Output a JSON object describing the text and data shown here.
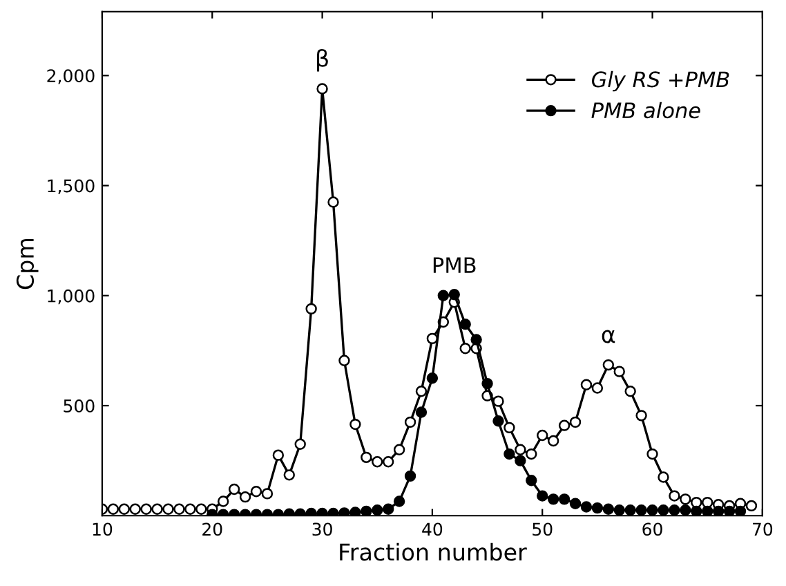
{
  "chart_data": {
    "type": "line",
    "xlabel": "Fraction number",
    "ylabel": "Cpm",
    "xlim": [
      10,
      70
    ],
    "xticks": [
      10,
      20,
      30,
      40,
      50,
      60,
      70
    ],
    "ylim": [
      0,
      2290
    ],
    "yticks": [
      {
        "value": 500,
        "label": "500"
      },
      {
        "value": 1000,
        "label": "1,000"
      },
      {
        "value": 1500,
        "label": "1,500"
      },
      {
        "value": 2000,
        "label": "2,000"
      }
    ],
    "marker": "circle",
    "line_style": "solid",
    "grid": false,
    "legend": "top right",
    "annotations": [
      {
        "text": "β",
        "x": 30,
        "y": 1940
      },
      {
        "text": "PMB",
        "x": 42,
        "y": 1005
      },
      {
        "text": "α",
        "x": 56,
        "y": 685
      }
    ],
    "series": [
      {
        "name": "Gly RS +PMB",
        "color": "#000000",
        "x": [
          10,
          11,
          12,
          13,
          14,
          15,
          16,
          17,
          18,
          19,
          20,
          21,
          22,
          23,
          24,
          25,
          26,
          27,
          28,
          29,
          30,
          31,
          32,
          33,
          34,
          35,
          36,
          37,
          38,
          39,
          40,
          41,
          42,
          43,
          44,
          45,
          46,
          47,
          48,
          49,
          50,
          51,
          52,
          53,
          54,
          55,
          56,
          57,
          58,
          59,
          60,
          61,
          62,
          63,
          64,
          65,
          66,
          67,
          68,
          69
        ],
        "values": [
          30,
          30,
          30,
          30,
          30,
          30,
          30,
          30,
          30,
          30,
          30,
          65,
          120,
          85,
          110,
          100,
          275,
          185,
          325,
          940,
          1940,
          1425,
          705,
          415,
          265,
          245,
          245,
          300,
          425,
          565,
          805,
          880,
          970,
          760,
          760,
          545,
          520,
          400,
          300,
          280,
          365,
          340,
          410,
          425,
          595,
          580,
          685,
          655,
          565,
          455,
          280,
          175,
          90,
          75,
          60,
          60,
          50,
          45,
          55,
          45
        ]
      },
      {
        "name": "PMB alone",
        "color": "#000000",
        "x": [
          20,
          21,
          22,
          23,
          24,
          25,
          26,
          27,
          28,
          29,
          30,
          31,
          32,
          33,
          34,
          35,
          36,
          37,
          38,
          39,
          40,
          41,
          42,
          43,
          44,
          45,
          46,
          47,
          48,
          49,
          50,
          51,
          52,
          53,
          54,
          55,
          56,
          57,
          58,
          59,
          60,
          61,
          62,
          63,
          64,
          65,
          66,
          67,
          68
        ],
        "values": [
          5,
          5,
          5,
          5,
          5,
          5,
          5,
          8,
          8,
          10,
          10,
          10,
          12,
          15,
          20,
          25,
          30,
          65,
          180,
          470,
          625,
          1000,
          1005,
          870,
          800,
          600,
          430,
          280,
          250,
          160,
          90,
          75,
          75,
          55,
          40,
          35,
          30,
          25,
          25,
          25,
          25,
          25,
          25,
          25,
          20,
          20,
          20,
          20,
          20
        ]
      }
    ]
  }
}
